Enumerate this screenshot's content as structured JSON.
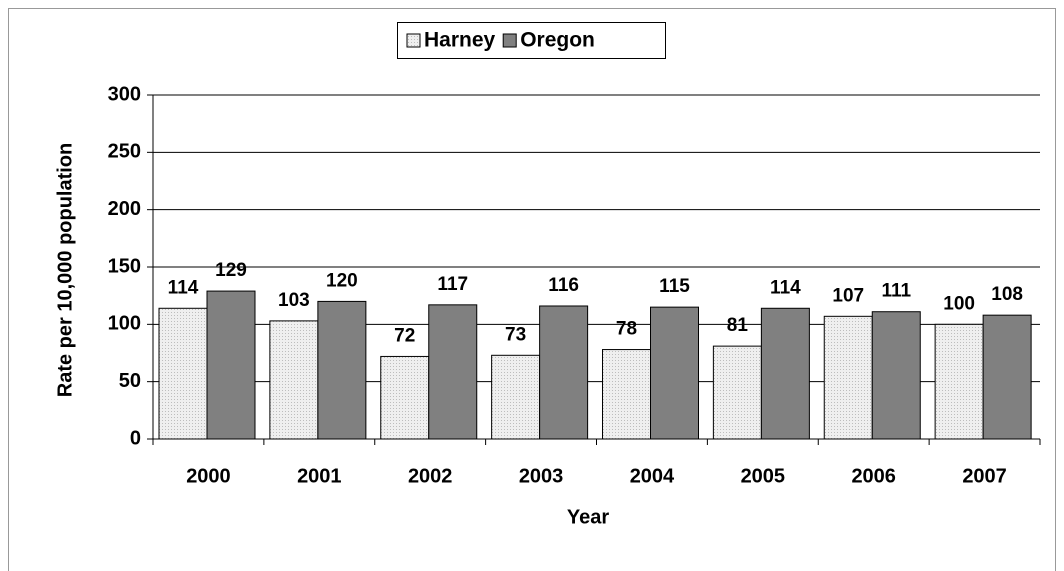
{
  "chart_data": {
    "type": "bar",
    "x_label": "Year",
    "y_label": "Rate per 10,000 population",
    "categories": [
      "2000",
      "2001",
      "2002",
      "2003",
      "2004",
      "2005",
      "2006",
      "2007"
    ],
    "series": [
      {
        "name": "Harney",
        "color": "#e4e4e4",
        "values": [
          114,
          103,
          72,
          73,
          78,
          81,
          107,
          100
        ]
      },
      {
        "name": "Oregon",
        "color": "#808080",
        "values": [
          129,
          120,
          117,
          116,
          115,
          114,
          111,
          108
        ]
      }
    ],
    "ylim": [
      0,
      300
    ],
    "yticks": [
      0,
      50,
      100,
      150,
      200,
      250,
      300
    ],
    "grid": true,
    "legend": "top"
  }
}
